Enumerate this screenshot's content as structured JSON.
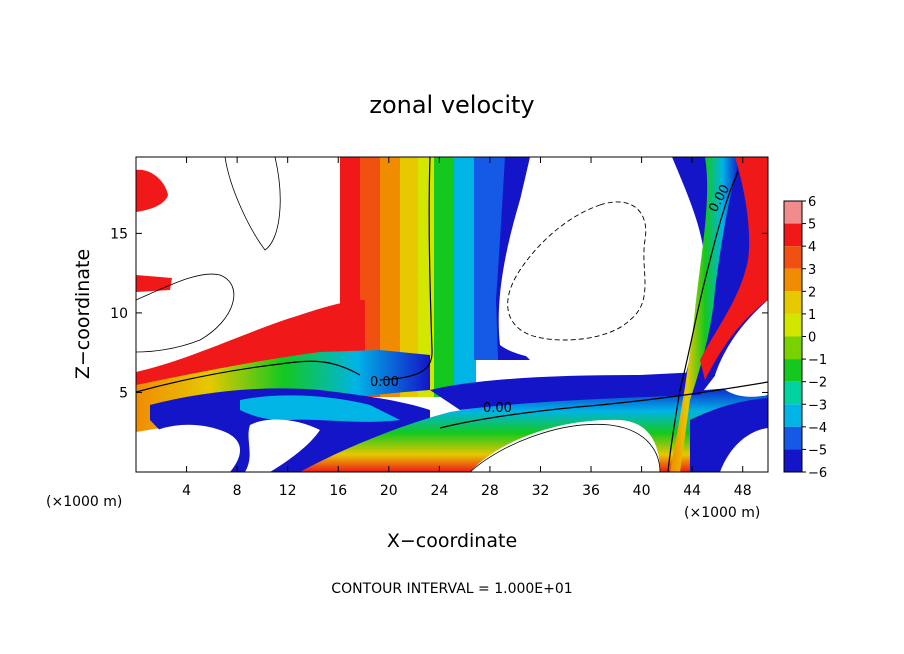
{
  "chart_data": {
    "type": "heatmap",
    "title": "zonal velocity",
    "xlabel": "X−coordinate",
    "ylabel": "Z−coordinate",
    "x_unit_left": "(×1000 m)",
    "x_unit_right": "(×1000 m)",
    "xlim": [
      0,
      50
    ],
    "ylim": [
      0,
      19.8
    ],
    "x_ticks": [
      4,
      8,
      12,
      16,
      20,
      24,
      28,
      32,
      36,
      40,
      44,
      48
    ],
    "y_ticks": [
      5,
      10,
      15
    ],
    "colorbar": {
      "levels": [
        6,
        5,
        4,
        3,
        2,
        1,
        0,
        -1,
        -2,
        -3,
        -4,
        -5,
        -6
      ],
      "colors": [
        "#f08c8c",
        "#f01818",
        "#f05010",
        "#f08c00",
        "#e6c800",
        "#d2e600",
        "#78d200",
        "#14c81e",
        "#00d2a0",
        "#00b4e6",
        "#145ae6",
        "#1414c8",
        "#7800a0"
      ]
    },
    "contour_labels": [
      "0.00",
      "0.00",
      "0.00"
    ],
    "annotation": "CONTOUR INTERVAL = 1.000E+01"
  }
}
